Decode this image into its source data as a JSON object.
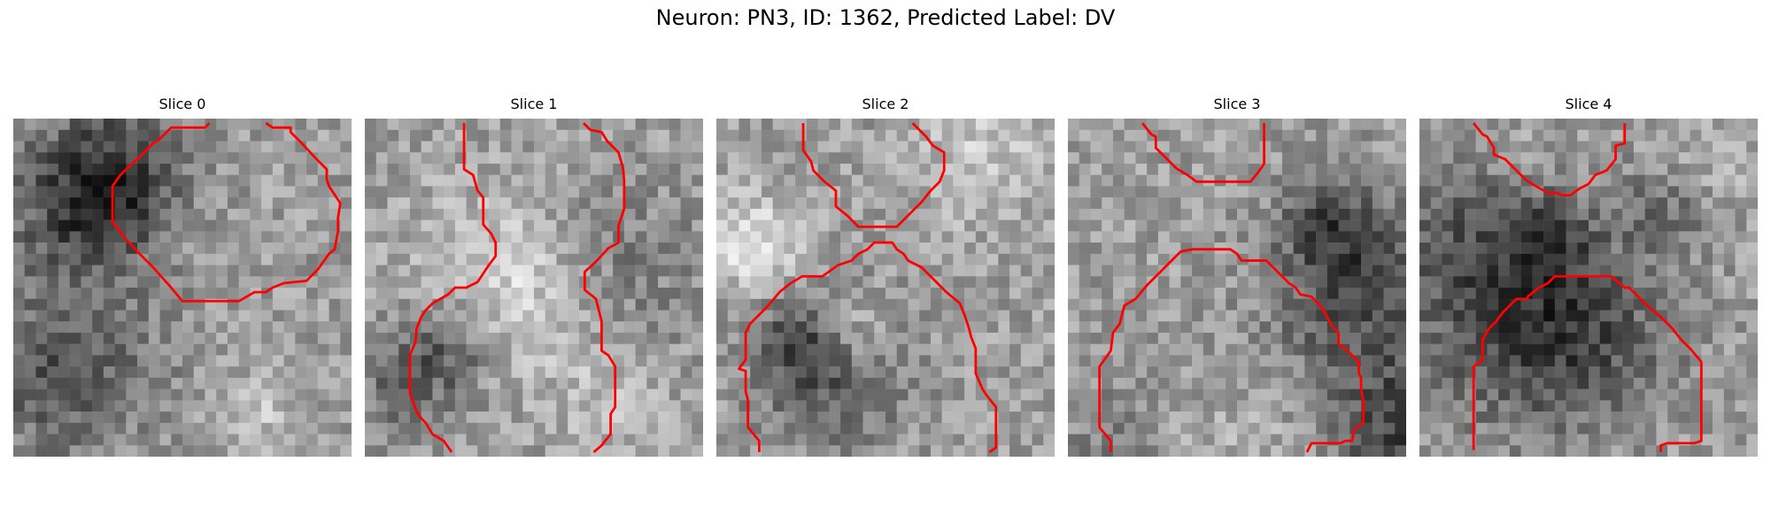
{
  "figure": {
    "title": "Neuron: PN3, ID: 1362, Predicted Label: DV"
  },
  "panels": [
    {
      "title": "Slice 0",
      "seed": 11,
      "contour_color": "#ff0000"
    },
    {
      "title": "Slice 1",
      "seed": 23,
      "contour_color": "#ff0000"
    },
    {
      "title": "Slice 2",
      "seed": 37,
      "contour_color": "#ff0000"
    },
    {
      "title": "Slice 3",
      "seed": 41,
      "contour_color": "#ff0000"
    },
    {
      "title": "Slice 4",
      "seed": 53,
      "contour_color": "#ff0000"
    }
  ]
}
